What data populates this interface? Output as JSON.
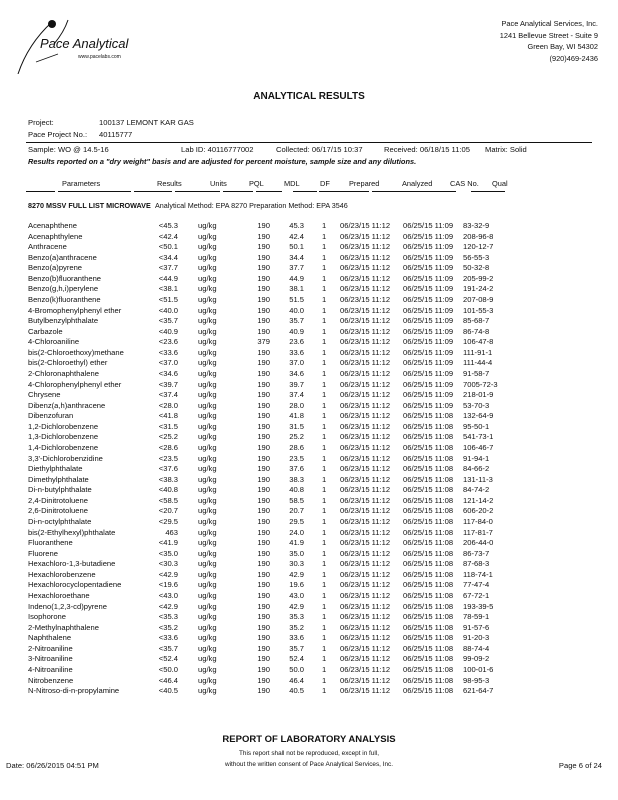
{
  "logo": {
    "brand": "Pace Analytical",
    "url": "www.pacelabs.com"
  },
  "company": {
    "name": "Pace Analytical Services, Inc.",
    "street": "1241 Bellevue Street - Suite 9",
    "city": "Green Bay, WI 54302",
    "phone": "(920)469-2436"
  },
  "title": "ANALYTICAL RESULTS",
  "project": {
    "label": "Project:",
    "value": "100137 LEMONT KAR GAS"
  },
  "pace_project": {
    "label": "Pace Project No.:",
    "value": "40115777"
  },
  "sample": {
    "sample": "Sample:  WO @ 14.5-16",
    "lab_id": "Lab ID:  40116777002",
    "collected": "Collected:  06/17/15 10:37",
    "received": "Received:  06/18/15 11:05",
    "matrix": "Matrix:  Solid"
  },
  "note": "Results reported on a \"dry weight\" basis and are adjusted for percent moisture, sample size and any dilutions.",
  "columns": [
    "Parameters",
    "Results",
    "Units",
    "PQL",
    "MDL",
    "DF",
    "Prepared",
    "Analyzed",
    "CAS No.",
    "Qual"
  ],
  "section": {
    "name": "8270 MSSV FULL LIST MICROWAVE",
    "method": "Analytical Method: EPA 8270  Preparation Method: EPA 3546"
  },
  "rows": [
    [
      "Acenaphthene",
      "<45.3",
      "ug/kg",
      "190",
      "45.3",
      "1",
      "06/23/15 11:12",
      "06/25/15 11:09",
      "83-32-9",
      ""
    ],
    [
      "Acenaphthylene",
      "<42.4",
      "ug/kg",
      "190",
      "42.4",
      "1",
      "06/23/15 11:12",
      "06/25/15 11:09",
      "208-96-8",
      ""
    ],
    [
      "Anthracene",
      "<50.1",
      "ug/kg",
      "190",
      "50.1",
      "1",
      "06/23/15 11:12",
      "06/25/15 11:09",
      "120-12-7",
      ""
    ],
    [
      "Benzo(a)anthracene",
      "<34.4",
      "ug/kg",
      "190",
      "34.4",
      "1",
      "06/23/15 11:12",
      "06/25/15 11:09",
      "56-55-3",
      ""
    ],
    [
      "Benzo(a)pyrene",
      "<37.7",
      "ug/kg",
      "190",
      "37.7",
      "1",
      "06/23/15 11:12",
      "06/25/15 11:09",
      "50-32-8",
      ""
    ],
    [
      "Benzo(b)fluoranthene",
      "<44.9",
      "ug/kg",
      "190",
      "44.9",
      "1",
      "06/23/15 11:12",
      "06/25/15 11:09",
      "205-99-2",
      ""
    ],
    [
      "Benzo(g,h,i)perylene",
      "<38.1",
      "ug/kg",
      "190",
      "38.1",
      "1",
      "06/23/15 11:12",
      "06/25/15 11:09",
      "191-24-2",
      ""
    ],
    [
      "Benzo(k)fluoranthene",
      "<51.5",
      "ug/kg",
      "190",
      "51.5",
      "1",
      "06/23/15 11:12",
      "06/25/15 11:09",
      "207-08-9",
      ""
    ],
    [
      "4-Bromophenylphenyl ether",
      "<40.0",
      "ug/kg",
      "190",
      "40.0",
      "1",
      "06/23/15 11:12",
      "06/25/15 11:09",
      "101-55-3",
      ""
    ],
    [
      "Butylbenzylphthalate",
      "<35.7",
      "ug/kg",
      "190",
      "35.7",
      "1",
      "06/23/15 11:12",
      "06/25/15 11:09",
      "85-68-7",
      ""
    ],
    [
      "Carbazole",
      "<40.9",
      "ug/kg",
      "190",
      "40.9",
      "1",
      "06/23/15 11:12",
      "06/25/15 11:09",
      "86-74-8",
      ""
    ],
    [
      "4-Chloroaniline",
      "<23.6",
      "ug/kg",
      "379",
      "23.6",
      "1",
      "06/23/15 11:12",
      "06/25/15 11:09",
      "106-47-8",
      ""
    ],
    [
      "bis(2-Chloroethoxy)methane",
      "<33.6",
      "ug/kg",
      "190",
      "33.6",
      "1",
      "06/23/15 11:12",
      "06/25/15 11:09",
      "111-91-1",
      ""
    ],
    [
      "bis(2-Chloroethyl) ether",
      "<37.0",
      "ug/kg",
      "190",
      "37.0",
      "1",
      "06/23/15 11:12",
      "06/25/15 11:09",
      "111-44-4",
      ""
    ],
    [
      "2-Chloronaphthalene",
      "<34.6",
      "ug/kg",
      "190",
      "34.6",
      "1",
      "06/23/15 11:12",
      "06/25/15 11:09",
      "91-58-7",
      ""
    ],
    [
      "4-Chlorophenylphenyl ether",
      "<39.7",
      "ug/kg",
      "190",
      "39.7",
      "1",
      "06/23/15 11:12",
      "06/25/15 11:09",
      "7005-72-3",
      ""
    ],
    [
      "Chrysene",
      "<37.4",
      "ug/kg",
      "190",
      "37.4",
      "1",
      "06/23/15 11:12",
      "06/25/15 11:09",
      "218-01-9",
      ""
    ],
    [
      "Dibenz(a,h)anthracene",
      "<28.0",
      "ug/kg",
      "190",
      "28.0",
      "1",
      "06/23/15 11:12",
      "06/25/15 11:09",
      "53-70-3",
      ""
    ],
    [
      "Dibenzofuran",
      "<41.8",
      "ug/kg",
      "190",
      "41.8",
      "1",
      "06/23/15 11:12",
      "06/25/15 11:08",
      "132-64-9",
      ""
    ],
    [
      "1,2-Dichlorobenzene",
      "<31.5",
      "ug/kg",
      "190",
      "31.5",
      "1",
      "06/23/15 11:12",
      "06/25/15 11:08",
      "95-50-1",
      ""
    ],
    [
      "1,3-Dichlorobenzene",
      "<25.2",
      "ug/kg",
      "190",
      "25.2",
      "1",
      "06/23/15 11:12",
      "06/25/15 11:08",
      "541-73-1",
      ""
    ],
    [
      "1,4-Dichlorobenzene",
      "<28.6",
      "ug/kg",
      "190",
      "28.6",
      "1",
      "06/23/15 11:12",
      "06/25/15 11:08",
      "106-46-7",
      ""
    ],
    [
      "3,3'-Dichlorobenzidine",
      "<23.5",
      "ug/kg",
      "190",
      "23.5",
      "1",
      "06/23/15 11:12",
      "06/25/15 11:08",
      "91-94-1",
      ""
    ],
    [
      "Diethylphthalate",
      "<37.6",
      "ug/kg",
      "190",
      "37.6",
      "1",
      "06/23/15 11:12",
      "06/25/15 11:08",
      "84-66-2",
      ""
    ],
    [
      "Dimethylphthalate",
      "<38.3",
      "ug/kg",
      "190",
      "38.3",
      "1",
      "06/23/15 11:12",
      "06/25/15 11:08",
      "131-11-3",
      ""
    ],
    [
      "Di-n-butylphthalate",
      "<40.8",
      "ug/kg",
      "190",
      "40.8",
      "1",
      "06/23/15 11:12",
      "06/25/15 11:08",
      "84-74-2",
      ""
    ],
    [
      "2,4-Dinitrotoluene",
      "<58.5",
      "ug/kg",
      "190",
      "58.5",
      "1",
      "06/23/15 11:12",
      "06/25/15 11:08",
      "121-14-2",
      ""
    ],
    [
      "2,6-Dinitrotoluene",
      "<20.7",
      "ug/kg",
      "190",
      "20.7",
      "1",
      "06/23/15 11:12",
      "06/25/15 11:08",
      "606-20-2",
      ""
    ],
    [
      "Di-n-octylphthalate",
      "<29.5",
      "ug/kg",
      "190",
      "29.5",
      "1",
      "06/23/15 11:12",
      "06/25/15 11:08",
      "117-84-0",
      ""
    ],
    [
      "bis(2-Ethylhexyl)phthalate",
      "463",
      "ug/kg",
      "190",
      "24.0",
      "1",
      "06/23/15 11:12",
      "06/25/15 11:08",
      "117-81-7",
      ""
    ],
    [
      "Fluoranthene",
      "<41.9",
      "ug/kg",
      "190",
      "41.9",
      "1",
      "06/23/15 11:12",
      "06/25/15 11:08",
      "206-44-0",
      ""
    ],
    [
      "Fluorene",
      "<35.0",
      "ug/kg",
      "190",
      "35.0",
      "1",
      "06/23/15 11:12",
      "06/25/15 11:08",
      "86-73-7",
      ""
    ],
    [
      "Hexachloro-1,3-butadiene",
      "<30.3",
      "ug/kg",
      "190",
      "30.3",
      "1",
      "06/23/15 11:12",
      "06/25/15 11:08",
      "87-68-3",
      ""
    ],
    [
      "Hexachlorobenzene",
      "<42.9",
      "ug/kg",
      "190",
      "42.9",
      "1",
      "06/23/15 11:12",
      "06/25/15 11:08",
      "118-74-1",
      ""
    ],
    [
      "Hexachlorocyclopentadiene",
      "<19.6",
      "ug/kg",
      "190",
      "19.6",
      "1",
      "06/23/15 11:12",
      "06/25/15 11:08",
      "77-47-4",
      ""
    ],
    [
      "Hexachloroethane",
      "<43.0",
      "ug/kg",
      "190",
      "43.0",
      "1",
      "06/23/15 11:12",
      "06/25/15 11:08",
      "67-72-1",
      ""
    ],
    [
      "Indeno(1,2,3-cd)pyrene",
      "<42.9",
      "ug/kg",
      "190",
      "42.9",
      "1",
      "06/23/15 11:12",
      "06/25/15 11:08",
      "193-39-5",
      ""
    ],
    [
      "Isophorone",
      "<35.3",
      "ug/kg",
      "190",
      "35.3",
      "1",
      "06/23/15 11:12",
      "06/25/15 11:08",
      "78-59-1",
      ""
    ],
    [
      "2-Methylnaphthalene",
      "<35.2",
      "ug/kg",
      "190",
      "35.2",
      "1",
      "06/23/15 11:12",
      "06/25/15 11:08",
      "91-57-6",
      ""
    ],
    [
      "Naphthalene",
      "<33.6",
      "ug/kg",
      "190",
      "33.6",
      "1",
      "06/23/15 11:12",
      "06/25/15 11:08",
      "91-20-3",
      ""
    ],
    [
      "2-Nitroaniline",
      "<35.7",
      "ug/kg",
      "190",
      "35.7",
      "1",
      "06/23/15 11:12",
      "06/25/15 11:08",
      "88-74-4",
      ""
    ],
    [
      "3-Nitroaniline",
      "<52.4",
      "ug/kg",
      "190",
      "52.4",
      "1",
      "06/23/15 11:12",
      "06/25/15 11:08",
      "99-09-2",
      ""
    ],
    [
      "4-Nitroaniline",
      "<50.0",
      "ug/kg",
      "190",
      "50.0",
      "1",
      "06/23/15 11:12",
      "06/25/15 11:08",
      "100-01-6",
      ""
    ],
    [
      "Nitrobenzene",
      "<46.4",
      "ug/kg",
      "190",
      "46.4",
      "1",
      "06/23/15 11:12",
      "06/25/15 11:08",
      "98-95-3",
      ""
    ],
    [
      "N-Nitroso-di-n-propylamine",
      "<40.5",
      "ug/kg",
      "190",
      "40.5",
      "1",
      "06/23/15 11:12",
      "06/25/15 11:08",
      "621-64-7",
      ""
    ]
  ],
  "footer": {
    "title": "REPORT OF LABORATORY ANALYSIS",
    "disclaimer_1": "This report shall not be reproduced, except in full,",
    "disclaimer_2": "without the written consent of Pace Analytical Services, Inc.",
    "date": "Date: 06/26/2015 04:51 PM",
    "page": "Page 6 of 24"
  }
}
